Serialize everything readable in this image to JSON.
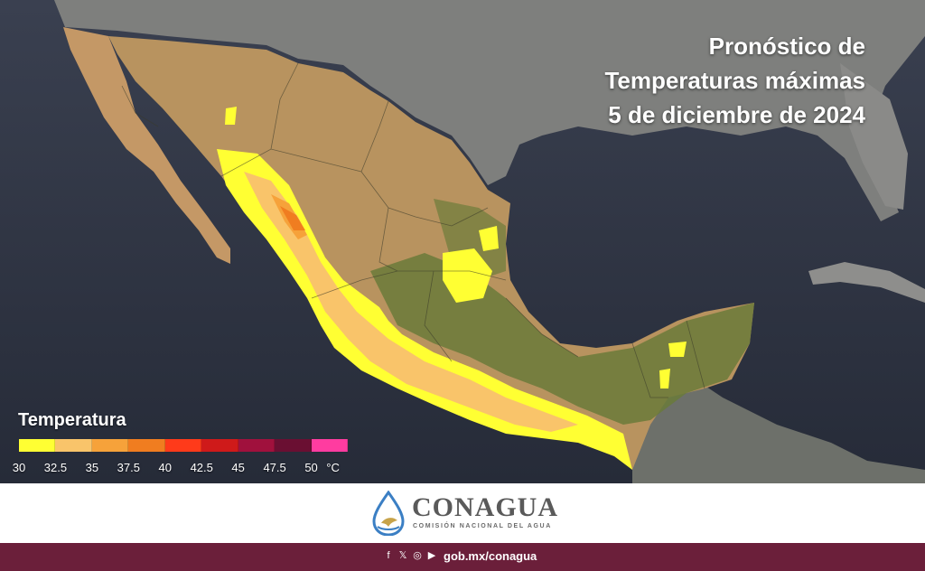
{
  "title": {
    "line1": "Pronóstico de",
    "line2": "Temperaturas máximas",
    "line3": "5 de diciembre de 2024"
  },
  "legend": {
    "title": "Temperatura",
    "unit": "°C",
    "bins": [
      {
        "label": "30",
        "color": "#ffff33"
      },
      {
        "label": "32.5",
        "color": "#f9c46a"
      },
      {
        "label": "35",
        "color": "#f6a23a"
      },
      {
        "label": "37.5",
        "color": "#f07d20"
      },
      {
        "label": "40",
        "color": "#ff3a1a"
      },
      {
        "label": "42.5",
        "color": "#cf1a1a"
      },
      {
        "label": "45",
        "color": "#a0113d"
      },
      {
        "label": "47.5",
        "color": "#6a0f32"
      },
      {
        "label": "50",
        "color": "#ff3ca0"
      }
    ]
  },
  "brand": {
    "name": "CONAGUA",
    "subtitle": "COMISIÓN NACIONAL DEL AGUA"
  },
  "footer": {
    "social_icons": [
      "facebook-icon",
      "x-icon",
      "instagram-icon",
      "youtube-icon"
    ],
    "url": "gob.mx/conagua"
  },
  "colors": {
    "ocean": "#2e3545",
    "land_other": "#7a7a78",
    "mexico_land": "#c8a06a",
    "footer_bg": "#6b1f3a"
  }
}
